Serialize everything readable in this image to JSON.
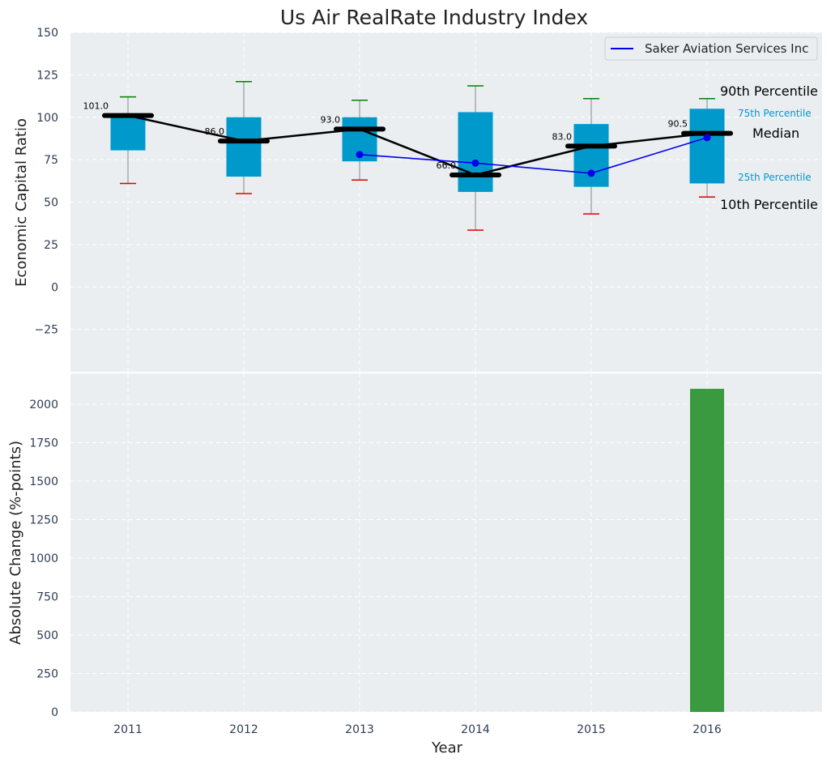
{
  "colors": {
    "panel_bg": "#eaeef0",
    "grid": "#ffffff",
    "box": "#0099cc",
    "median_line": "#000000",
    "company_line": "#0000ee",
    "whisker_high": "#008000",
    "whisker_low": "#dd0000",
    "bar": "#3a9a3f",
    "tick_text": "#2e3d55"
  },
  "chart_data": [
    {
      "type": "box",
      "title": "Us Air RealRate Industry Index",
      "ylabel": "Economic Capital Ratio",
      "ylim": [
        -50,
        150
      ],
      "yticks": [
        -25,
        0,
        25,
        50,
        75,
        100,
        125,
        150
      ],
      "ytick_labels": [
        "−25",
        "0",
        "25",
        "50",
        "75",
        "100",
        "125",
        "150"
      ],
      "grid": true,
      "legend_position": "top-right",
      "categories": [
        "2011",
        "2012",
        "2013",
        "2014",
        "2015",
        "2016"
      ],
      "boxes": [
        {
          "year": "2011",
          "p10": 61,
          "p25": 80.5,
          "median": 101,
          "p75": 101,
          "p90": 112,
          "median_label": "101.0"
        },
        {
          "year": "2012",
          "p10": 55,
          "p25": 65,
          "median": 86,
          "p75": 100,
          "p90": 121,
          "median_label": "86.0"
        },
        {
          "year": "2013",
          "p10": 63,
          "p25": 74,
          "median": 93,
          "p75": 100,
          "p90": 110,
          "median_label": "93.0"
        },
        {
          "year": "2014",
          "p10": 33.5,
          "p25": 56,
          "median": 66,
          "p75": 103,
          "p90": 118.5,
          "median_label": "66.0"
        },
        {
          "year": "2015",
          "p10": 43,
          "p25": 59,
          "median": 83,
          "p75": 96,
          "p90": 111,
          "median_label": "83.0"
        },
        {
          "year": "2016",
          "p10": 53,
          "p25": 61,
          "median": 90.5,
          "p75": 105,
          "p90": 111,
          "median_label": "90.5"
        }
      ],
      "series": [
        {
          "name": "Saker Aviation Services Inc",
          "x": [
            "2013",
            "2014",
            "2015",
            "2016"
          ],
          "values": [
            78,
            73,
            67,
            88
          ]
        }
      ],
      "annotations": {
        "p90": "90th Percentile",
        "p75": "75th Percentile",
        "median": "Median",
        "p25": "25th Percentile",
        "p10": "10th Percentile"
      }
    },
    {
      "type": "bar",
      "ylabel": "Absolute Change (%-points)",
      "xlabel": "Year",
      "ylim": [
        0,
        2200
      ],
      "yticks": [
        0,
        250,
        500,
        750,
        1000,
        1250,
        1500,
        1750,
        2000
      ],
      "categories": [
        "2011",
        "2012",
        "2013",
        "2014",
        "2015",
        "2016"
      ],
      "values": [
        0,
        0,
        0,
        0,
        0,
        2100
      ],
      "grid": true
    }
  ]
}
